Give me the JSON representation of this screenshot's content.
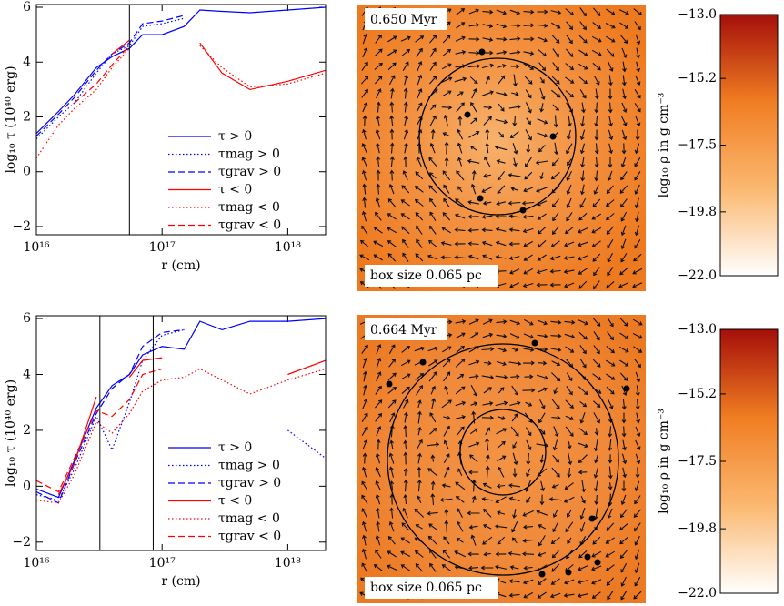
{
  "chart_data": [
    {
      "type": "line",
      "xscale": "log",
      "xlabel": "r (cm)",
      "ylabel": "log₁₀ τ (10⁴⁰ erg)",
      "xlim": [
        1e+16,
        2e+18
      ],
      "ylim": [
        -2.3,
        6.1
      ],
      "xticks": [
        {
          "value": 1e+16,
          "label": "10¹⁶"
        },
        {
          "value": 1e+17,
          "label": "10¹⁷"
        },
        {
          "value": 1e+18,
          "label": "10¹⁸"
        }
      ],
      "yticks": [
        {
          "value": -2,
          "label": "−2"
        },
        0,
        2,
        4,
        6
      ],
      "vlines": [
        5.5e+16
      ],
      "x": [
        1e+16,
        1.5e+16,
        2e+16,
        3e+16,
        4e+16,
        5.5e+16,
        7e+16,
        1e+17,
        1.5e+17,
        2e+17,
        3e+17,
        5e+17,
        1e+18,
        2e+18
      ],
      "series": [
        {
          "name": "τ > 0",
          "color": "#0000ff",
          "style": "solid",
          "values": [
            1.4,
            2.2,
            2.8,
            3.8,
            4.2,
            4.5,
            5.0,
            5.0,
            5.3,
            5.9,
            5.85,
            5.8,
            5.9,
            6.0
          ]
        },
        {
          "name": "τmag > 0",
          "color": "#0000ff",
          "style": "dotted",
          "values": [
            1.2,
            2.0,
            2.5,
            3.6,
            4.3,
            4.6,
            5.3,
            5.4,
            5.6,
            null,
            null,
            null,
            null,
            null
          ]
        },
        {
          "name": "τgrav > 0",
          "color": "#0000ff",
          "style": "dashed",
          "values": [
            1.3,
            2.1,
            2.7,
            3.7,
            4.3,
            4.7,
            5.4,
            5.5,
            5.7,
            null,
            null,
            null,
            null,
            null
          ]
        },
        {
          "name": "τ < 0",
          "color": "#ff0000",
          "style": "solid",
          "values": [
            null,
            null,
            null,
            null,
            4.3,
            4.8,
            null,
            null,
            null,
            4.7,
            3.6,
            3.0,
            3.3,
            3.7
          ]
        },
        {
          "name": "τmag < 0",
          "color": "#ff0000",
          "style": "dotted",
          "values": [
            0.5,
            1.7,
            2.3,
            3.0,
            3.8,
            4.5,
            null,
            null,
            null,
            4.6,
            3.8,
            3.1,
            3.2,
            3.6
          ]
        },
        {
          "name": "τgrav < 0",
          "color": "#ff0000",
          "style": "dashed",
          "values": [
            null,
            null,
            2.5,
            3.2,
            3.9,
            4.6,
            null,
            null,
            null,
            null,
            null,
            null,
            null,
            null
          ]
        }
      ]
    },
    {
      "type": "map",
      "time": "0.650 Myr",
      "box_label": "box size 0.065 pc"
    },
    {
      "type": "colorbar",
      "label": "log₁₀ ρ in g cm⁻³",
      "ylim": [
        -22,
        -13
      ],
      "yticks": [
        {
          "value": -13,
          "label": "−13.0"
        },
        {
          "value": -15.2,
          "label": "−15.2"
        },
        {
          "value": -17.5,
          "label": "−17.5"
        },
        {
          "value": -19.8,
          "label": "−19.8"
        },
        {
          "value": -22,
          "label": "−22.0"
        }
      ],
      "colors": [
        "#ffffff",
        "#fbb870",
        "#f07d22",
        "#a50f0a"
      ]
    },
    {
      "type": "line",
      "xscale": "log",
      "xlabel": "r (cm)",
      "ylabel": "log₁₀ τ (10⁴⁰ erg)",
      "xlim": [
        1e+16,
        2e+18
      ],
      "ylim": [
        -2.3,
        6.1
      ],
      "xticks": [
        {
          "value": 1e+16,
          "label": "10¹⁶"
        },
        {
          "value": 1e+17,
          "label": "10¹⁷"
        },
        {
          "value": 1e+18,
          "label": "10¹⁸"
        }
      ],
      "yticks": [
        {
          "value": -2,
          "label": "−2"
        },
        0,
        2,
        4,
        6
      ],
      "vlines": [
        3.2e+16,
        8.5e+16
      ],
      "x": [
        1e+16,
        1.5e+16,
        2e+16,
        3e+16,
        4e+16,
        5.5e+16,
        7e+16,
        1e+17,
        1.5e+17,
        2e+17,
        3e+17,
        5e+17,
        1e+18,
        2e+18
      ],
      "series": [
        {
          "name": "τ > 0",
          "color": "#0000ff",
          "style": "solid",
          "values": [
            -0.1,
            -0.4,
            0.9,
            2.8,
            3.6,
            4.0,
            4.7,
            5.0,
            4.9,
            5.9,
            5.6,
            5.9,
            5.9,
            6.0
          ]
        },
        {
          "name": "τmag > 0",
          "color": "#0000ff",
          "style": "dotted",
          "values": [
            -0.3,
            -0.5,
            0.6,
            2.5,
            1.3,
            3.0,
            4.5,
            5.4,
            5.6,
            null,
            null,
            null,
            2.0,
            1.0
          ]
        },
        {
          "name": "τgrav > 0",
          "color": "#0000ff",
          "style": "dashed",
          "values": [
            -0.2,
            -0.6,
            0.8,
            2.6,
            3.5,
            4.0,
            5.0,
            5.5,
            5.6,
            null,
            null,
            null,
            null,
            null
          ]
        },
        {
          "name": "τ < 0",
          "color": "#ff0000",
          "style": "solid",
          "values": [
            null,
            -0.3,
            0.8,
            3.2,
            null,
            3.9,
            4.5,
            4.6,
            null,
            null,
            null,
            null,
            4.0,
            4.5
          ]
        },
        {
          "name": "τmag < 0",
          "color": "#ff0000",
          "style": "dotted",
          "values": [
            -0.5,
            -0.6,
            0.4,
            2.3,
            1.9,
            2.6,
            3.4,
            3.8,
            3.9,
            4.2,
            3.8,
            3.3,
            3.8,
            4.2
          ]
        },
        {
          "name": "τgrav < 0",
          "color": "#ff0000",
          "style": "dashed",
          "values": [
            0.2,
            -0.2,
            1.0,
            2.7,
            2.5,
            3.1,
            4.0,
            4.2,
            null,
            null,
            null,
            null,
            null,
            null
          ]
        }
      ]
    },
    {
      "type": "map",
      "time": "0.664 Myr",
      "box_label": "box size 0.065 pc"
    },
    {
      "type": "colorbar",
      "label": "log₁₀ ρ in g cm⁻³",
      "ylim": [
        -22,
        -13
      ],
      "yticks": [
        {
          "value": -13,
          "label": "−13.0"
        },
        {
          "value": -15.2,
          "label": "−15.2"
        },
        {
          "value": -17.5,
          "label": "−17.5"
        },
        {
          "value": -19.8,
          "label": "−19.8"
        },
        {
          "value": -22,
          "label": "−22.0"
        }
      ],
      "colors": [
        "#ffffff",
        "#fbb870",
        "#f07d22",
        "#a50f0a"
      ]
    }
  ]
}
